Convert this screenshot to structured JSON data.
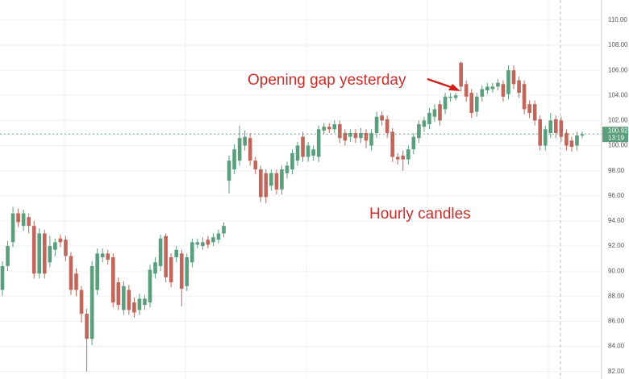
{
  "chart_data": {
    "type": "candlestick",
    "annotations": [
      "Opening gap yesterday",
      "Hourly candles"
    ],
    "up_color": "#5a9e7c",
    "down_color": "#c0665a",
    "open": [
      88.5,
      90.4,
      92.3,
      94.6,
      93.6,
      94.3,
      93.6,
      89.8,
      93.0,
      90.7,
      91.7,
      92.6,
      92.5,
      91.2,
      89.8,
      88.5,
      86.6,
      84.6,
      88.5,
      91.1,
      91.4,
      91.1,
      89.1,
      86.9,
      88.5,
      87.5,
      86.9,
      87.3,
      87.5,
      89.8,
      90.4,
      92.8,
      91.1,
      91.1,
      91.4,
      88.8,
      90.7,
      92.1,
      92.0,
      92.5,
      92.3,
      92.5,
      93.0,
      97.2,
      98.1,
      98.8,
      100.0,
      100.6,
      98.8,
      98.1,
      97.8,
      96.8,
      97.8,
      96.5,
      97.8,
      98.1,
      98.8,
      100.7,
      99.1,
      99.2,
      99.1,
      101.2,
      101.5,
      101.3,
      101.7,
      101.0,
      100.7,
      101.0,
      100.6,
      101.0,
      100.0,
      101.0,
      102.4,
      102.1,
      101.1,
      99.1,
      99.2,
      98.9,
      99.7,
      100.6,
      101.5,
      101.7,
      102.3,
      103.3,
      102.9,
      103.8,
      103.8,
      106.6,
      104.9,
      104.2,
      102.7,
      103.9,
      104.4,
      104.5,
      104.7,
      104.9,
      104.1,
      106.0,
      105.2,
      104.9,
      103.3,
      103.3,
      102.1,
      100.0,
      101.0,
      102.1,
      102.0,
      101.0,
      100.4,
      100.0,
      100.8
    ],
    "high": [
      90.8,
      92.4,
      95.1,
      95.0,
      94.9,
      94.6,
      94.0,
      93.4,
      93.3,
      92.8,
      92.6,
      92.9,
      92.8,
      91.5,
      90.2,
      88.8,
      87.0,
      90.8,
      91.8,
      91.8,
      91.7,
      91.4,
      89.5,
      89.2,
      88.9,
      87.9,
      88.2,
      88.1,
      90.5,
      91.1,
      92.9,
      93.0,
      91.4,
      92.0,
      91.7,
      91.4,
      92.6,
      92.6,
      92.7,
      92.8,
      93.0,
      93.3,
      93.9,
      99.2,
      100.1,
      101.6,
      101.2,
      101.0,
      99.1,
      98.4,
      98.1,
      98.1,
      98.1,
      98.4,
      98.7,
      99.7,
      100.3,
      101.1,
      100.3,
      100.0,
      101.6,
      101.8,
      101.8,
      102.0,
      102.0,
      101.3,
      101.3,
      101.3,
      101.4,
      101.3,
      101.3,
      102.7,
      102.7,
      102.4,
      101.4,
      99.4,
      99.6,
      100.0,
      101.0,
      102.0,
      102.3,
      103.0,
      103.3,
      103.6,
      104.2,
      104.2,
      104.2,
      106.7,
      105.2,
      104.5,
      104.2,
      104.8,
      105.0,
      105.0,
      105.3,
      105.2,
      106.4,
      106.4,
      105.5,
      105.2,
      103.6,
      103.6,
      102.4,
      101.6,
      102.6,
      102.4,
      102.3,
      101.3,
      100.7,
      101.1,
      101.1
    ],
    "low": [
      88.0,
      90.0,
      91.9,
      93.5,
      93.2,
      93.0,
      89.4,
      89.4,
      89.4,
      90.3,
      91.2,
      91.9,
      90.8,
      88.1,
      88.0,
      85.9,
      82.0,
      84.1,
      88.1,
      90.7,
      90.5,
      87.1,
      86.9,
      86.5,
      86.5,
      86.3,
      86.5,
      86.9,
      87.1,
      89.4,
      90.0,
      89.1,
      88.7,
      90.7,
      87.2,
      88.4,
      90.3,
      91.8,
      91.7,
      91.8,
      92.0,
      92.2,
      92.7,
      96.2,
      97.7,
      98.4,
      99.6,
      98.4,
      97.7,
      95.5,
      95.4,
      96.4,
      96.1,
      96.1,
      97.4,
      97.7,
      98.4,
      98.7,
      98.7,
      98.8,
      98.7,
      100.9,
      101.0,
      101.0,
      100.2,
      100.0,
      100.3,
      100.2,
      100.2,
      99.8,
      99.6,
      100.6,
      101.6,
      100.6,
      98.7,
      98.5,
      98.0,
      98.5,
      99.3,
      100.2,
      101.1,
      101.3,
      101.9,
      101.6,
      102.5,
      103.5,
      103.6,
      104.3,
      103.5,
      102.2,
      102.3,
      103.5,
      104.1,
      104.2,
      104.4,
      103.5,
      103.7,
      104.5,
      103.8,
      102.5,
      102.2,
      101.6,
      99.6,
      99.6,
      100.6,
      100.6,
      100.3,
      99.6,
      99.5,
      99.6,
      100.6
    ],
    "close": [
      90.4,
      92.0,
      94.6,
      93.9,
      94.6,
      93.6,
      89.8,
      93.0,
      89.8,
      92.0,
      92.3,
      92.3,
      91.2,
      88.5,
      88.5,
      86.6,
      84.6,
      90.4,
      91.4,
      91.4,
      90.9,
      87.5,
      87.3,
      88.8,
      86.9,
      86.7,
      87.8,
      87.8,
      90.1,
      90.7,
      92.6,
      89.5,
      89.1,
      91.7,
      88.6,
      91.1,
      92.3,
      92.3,
      92.3,
      92.1,
      92.7,
      93.0,
      93.6,
      98.8,
      99.7,
      100.6,
      100.7,
      98.8,
      98.1,
      95.9,
      95.9,
      97.8,
      96.5,
      98.1,
      98.4,
      99.4,
      100.0,
      99.1,
      100.0,
      99.7,
      101.3,
      101.5,
      101.3,
      101.7,
      100.6,
      100.4,
      101.0,
      100.6,
      101.0,
      100.4,
      101.0,
      102.3,
      102.0,
      101.0,
      99.1,
      98.9,
      98.9,
      99.7,
      100.7,
      101.7,
      102.0,
      102.6,
      102.9,
      102.0,
      103.9,
      103.9,
      104.0,
      104.7,
      103.9,
      102.6,
      103.9,
      104.5,
      104.7,
      104.7,
      105.0,
      103.9,
      106.0,
      104.9,
      104.2,
      102.9,
      102.6,
      102.0,
      100.0,
      101.3,
      102.0,
      101.0,
      100.7,
      100.0,
      99.9,
      100.8,
      100.9
    ],
    "last_price": 100.92,
    "countdown": "13:19",
    "ylim": [
      81.4,
      111.6
    ],
    "yticks": [
      {
        "value": 82,
        "label": "82.00"
      },
      {
        "value": 84,
        "label": "84.00"
      },
      {
        "value": 86,
        "label": "86.00"
      },
      {
        "value": 88,
        "label": "88.00"
      },
      {
        "value": 90,
        "label": "90.00"
      },
      {
        "value": 92,
        "label": "92.00"
      },
      {
        "value": 94,
        "label": "94.00"
      },
      {
        "value": 96,
        "label": "96.00"
      },
      {
        "value": 98,
        "label": "98.00"
      },
      {
        "value": 100,
        "label": "100.00"
      },
      {
        "value": 102,
        "label": "102.00"
      },
      {
        "value": 104,
        "label": "104.00"
      },
      {
        "value": 106,
        "label": "106.00"
      },
      {
        "value": 108,
        "label": "108.00"
      },
      {
        "value": 110,
        "label": "110.00"
      }
    ],
    "grid": true
  }
}
